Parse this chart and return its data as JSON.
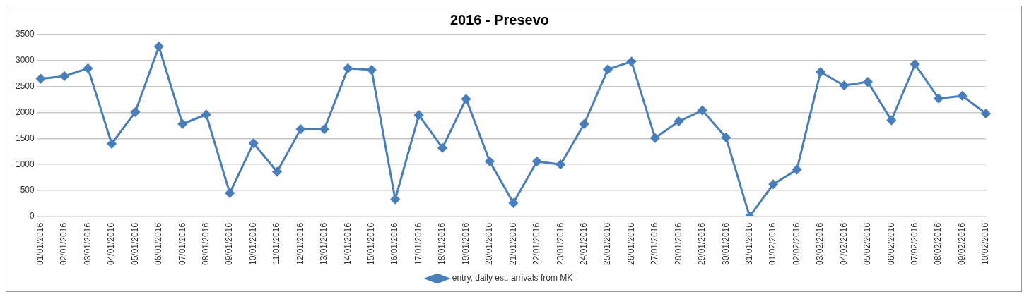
{
  "chart_data": {
    "type": "line",
    "title": "2016 - Presevo",
    "categories": [
      "01/01/2016",
      "02/01/2016",
      "03/01/2016",
      "04/01/2016",
      "05/01/2016",
      "06/01/2016",
      "07/01/2016",
      "08/01/2016",
      "09/01/2016",
      "10/01/2016",
      "11/01/2016",
      "12/01/2016",
      "13/01/2016",
      "14/01/2016",
      "15/01/2016",
      "16/01/2016",
      "17/01/2016",
      "18/01/2016",
      "19/01/2016",
      "20/01/2016",
      "21/01/2016",
      "22/01/2016",
      "23/01/2016",
      "24/01/2016",
      "25/01/2016",
      "26/01/2016",
      "27/01/2016",
      "28/01/2016",
      "29/01/2016",
      "30/01/2016",
      "31/01/2016",
      "01/02/2016",
      "02/02/2016",
      "03/02/2016",
      "04/02/2016",
      "05/02/2016",
      "06/02/2016",
      "07/02/2016",
      "08/02/2016",
      "09/02/2016",
      "10/02/2016"
    ],
    "series": [
      {
        "name": "entry, daily est. arrivals from MK",
        "color": "#4a7ebb",
        "values": [
          2650,
          2700,
          2850,
          1400,
          2010,
          3270,
          1780,
          1960,
          450,
          1410,
          860,
          1680,
          1680,
          2850,
          2820,
          330,
          1950,
          1320,
          2260,
          1060,
          260,
          1060,
          1000,
          1780,
          2830,
          2980,
          1510,
          1830,
          2040,
          1520,
          0,
          620,
          900,
          2780,
          2520,
          2590,
          1850,
          2930,
          2270,
          2320,
          1980
        ]
      }
    ],
    "ylim": [
      0,
      3500
    ],
    "yticks": [
      0,
      500,
      1000,
      1500,
      2000,
      2500,
      3000,
      3500
    ],
    "grid": "y",
    "legend": "bottom",
    "marker": "diamond",
    "line_style": "solid"
  }
}
